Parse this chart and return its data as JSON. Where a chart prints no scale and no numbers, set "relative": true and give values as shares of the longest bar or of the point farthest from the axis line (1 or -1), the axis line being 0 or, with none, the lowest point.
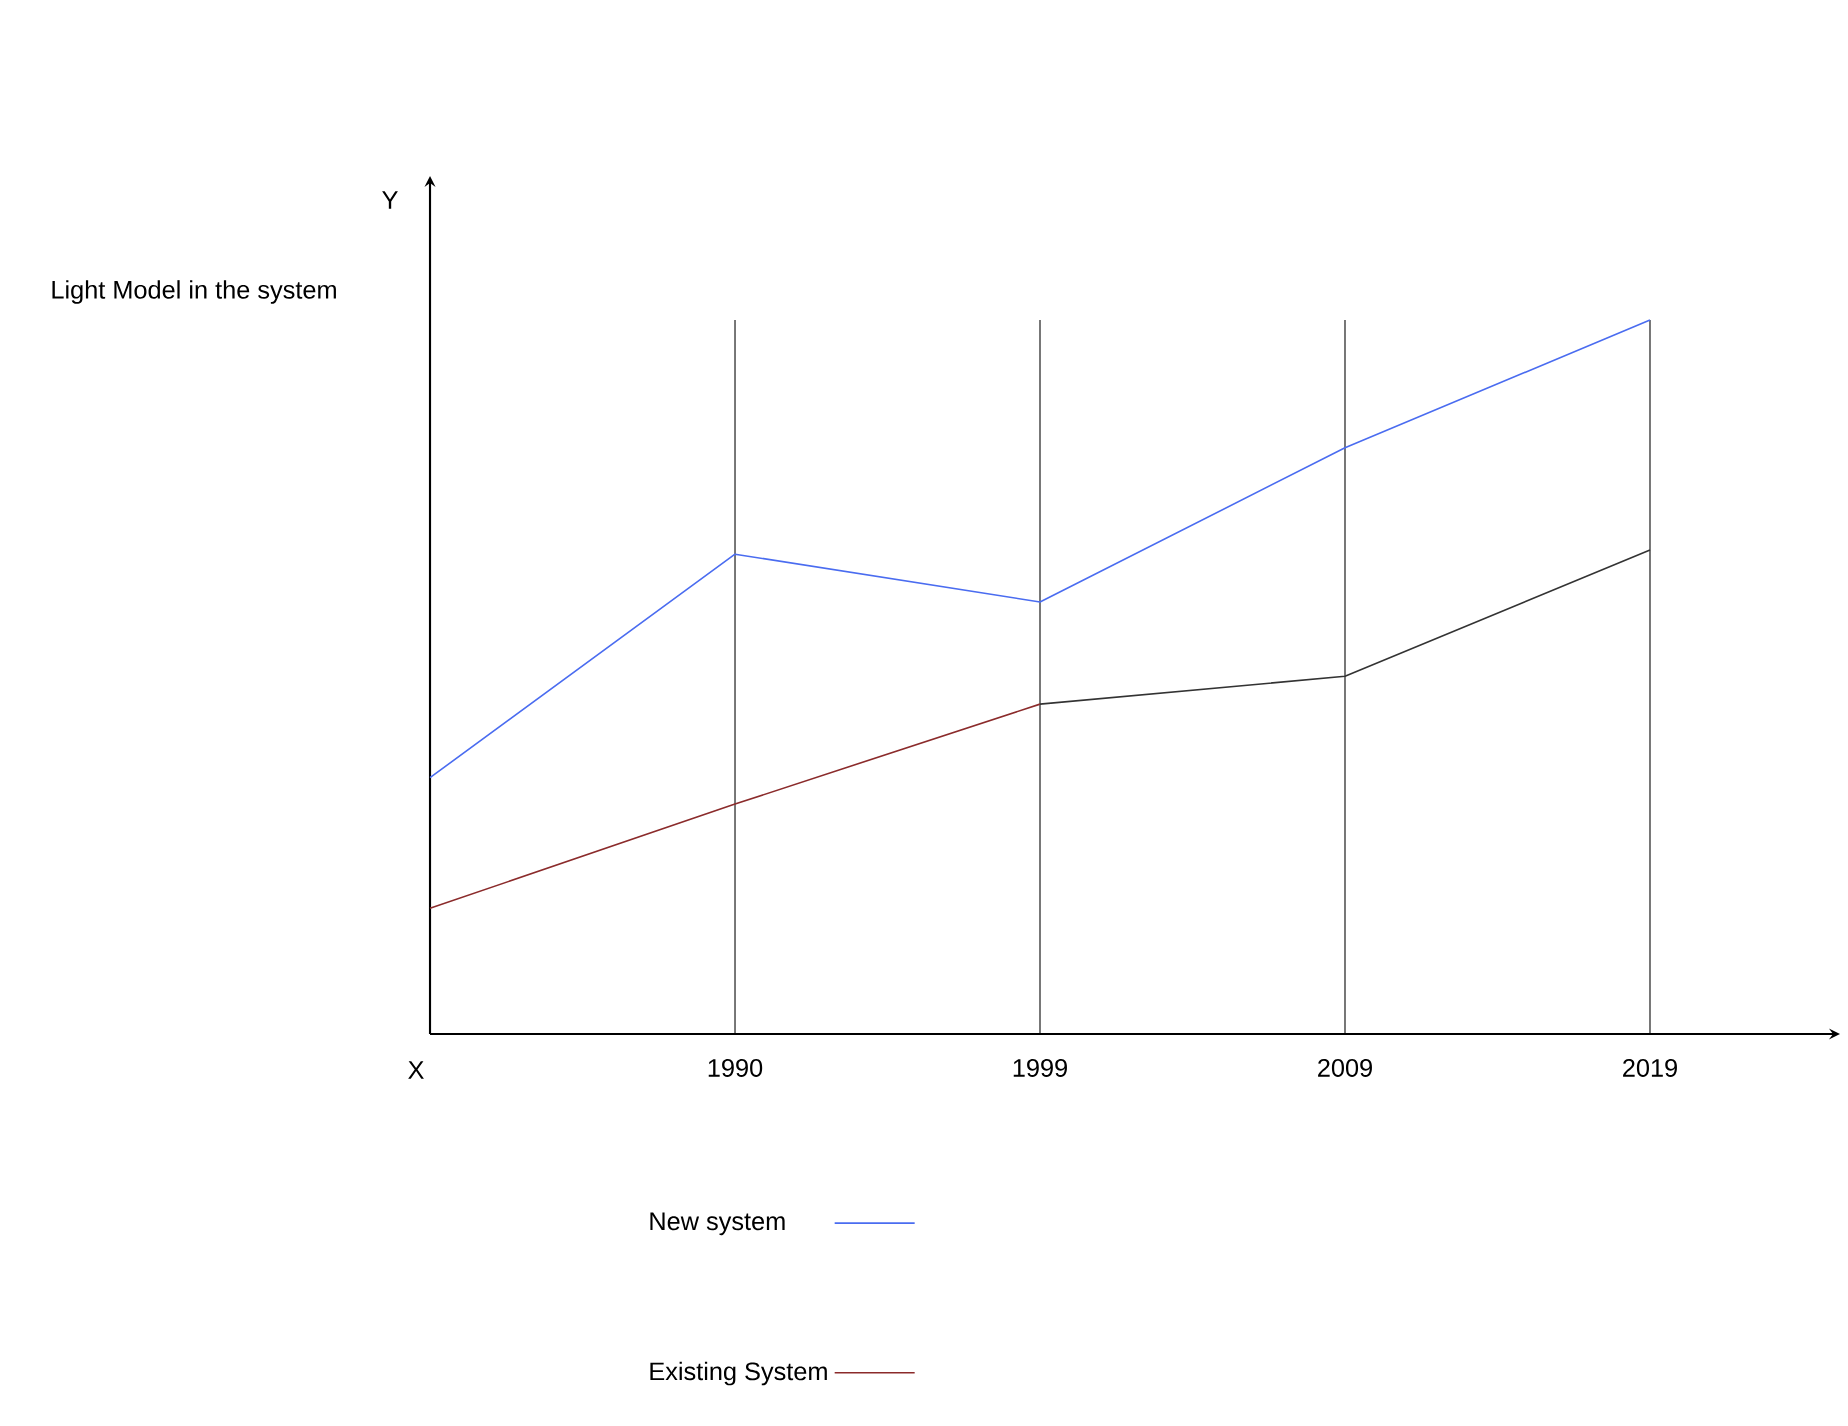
{
  "chart_data": {
    "type": "line",
    "relative": true,
    "xlabel": "X",
    "ylabel": "Light Model in the system",
    "annotations": [
      "Y"
    ],
    "categories": [
      null,
      "1990",
      "1999",
      "2009",
      "2019"
    ],
    "grid": "x",
    "legend": "bottom",
    "marker": "none",
    "series": [
      {
        "name": "New system",
        "color": "#4a6cf0",
        "values": [
          0.359,
          0.672,
          0.605,
          0.821,
          1
        ]
      },
      {
        "name": "Existing System",
        "color": "#8b2b2b",
        "values": [
          0.176,
          0.322,
          0.462,
          null,
          null
        ]
      },
      {
        "color": "#333333",
        "values": [
          null,
          null,
          0.462,
          0.501,
          0.678
        ]
      }
    ]
  }
}
